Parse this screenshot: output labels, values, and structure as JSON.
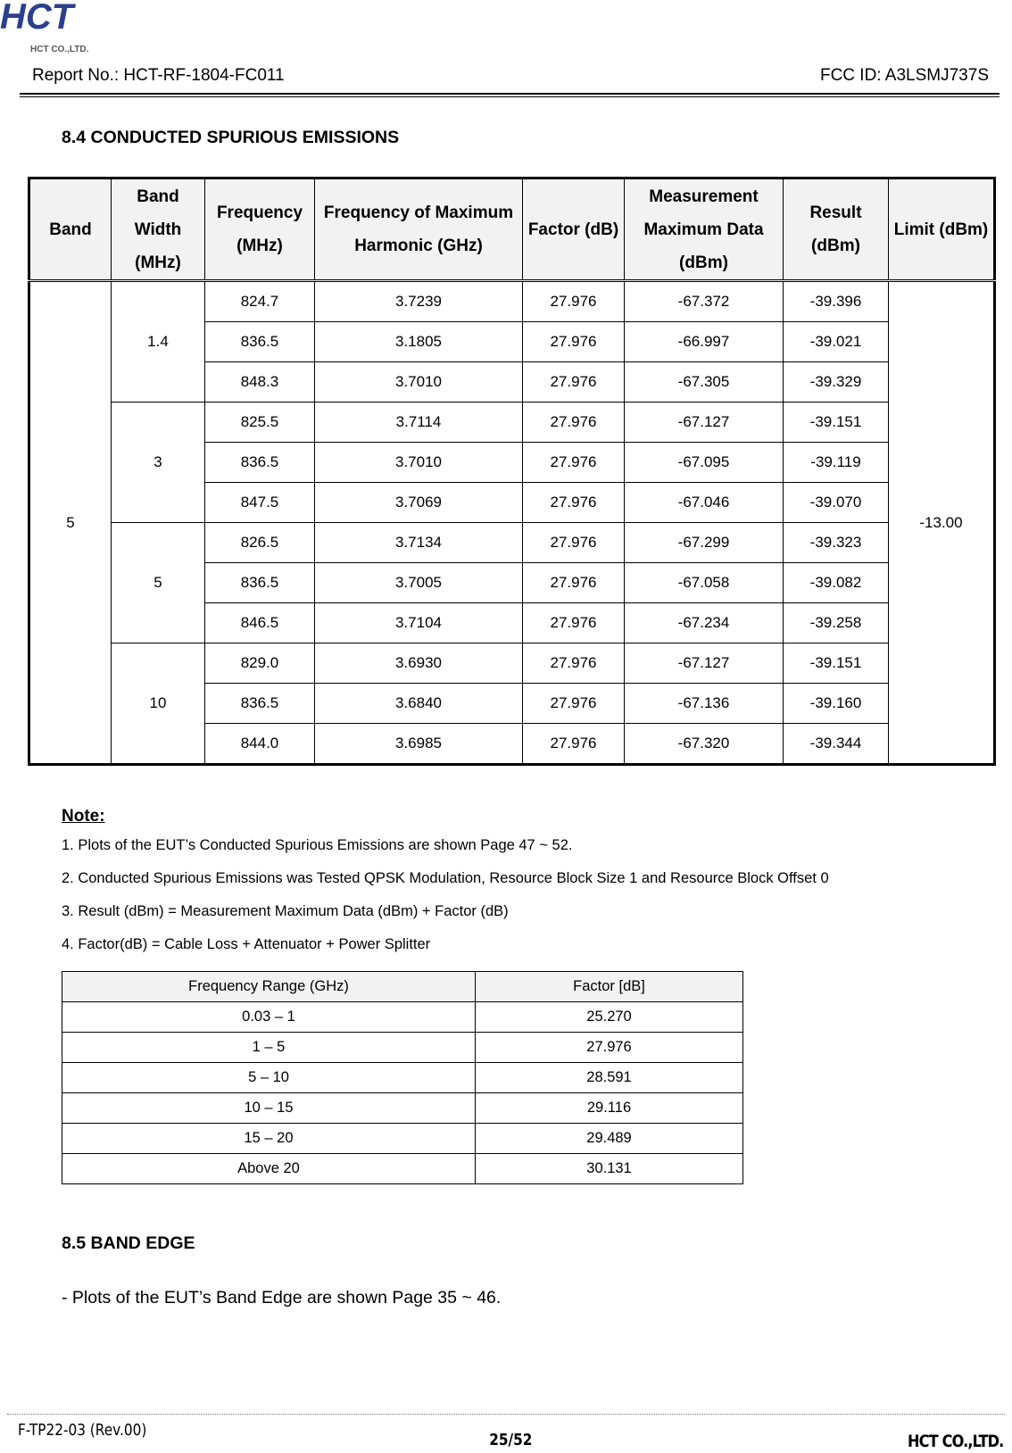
{
  "header": {
    "logo_text": "HCT",
    "logo_sub": "HCT CO.,LTD.",
    "report_no": "Report No.: HCT-RF-1804-FC011",
    "fcc_id": "FCC ID: A3LSMJ737S",
    "brand_color": "#2b3f8f"
  },
  "section_84": {
    "title": "8.4 CONDUCTED SPURIOUS EMISSIONS"
  },
  "main_table": {
    "headers": [
      "Band",
      "Band Width (MHz)",
      "Frequency (MHz)",
      "Frequency of Maximum Harmonic (GHz)",
      "Factor (dB)",
      "Measurement Maximum Data (dBm)",
      "Result (dBm)",
      "Limit (dBm)"
    ],
    "band": "5",
    "limit": "-13.00",
    "groups": [
      {
        "bw": "1.4",
        "rows": [
          [
            "824.7",
            "3.7239",
            "27.976",
            "-67.372",
            "-39.396"
          ],
          [
            "836.5",
            "3.1805",
            "27.976",
            "-66.997",
            "-39.021"
          ],
          [
            "848.3",
            "3.7010",
            "27.976",
            "-67.305",
            "-39.329"
          ]
        ]
      },
      {
        "bw": "3",
        "rows": [
          [
            "825.5",
            "3.7114",
            "27.976",
            "-67.127",
            "-39.151"
          ],
          [
            "836.5",
            "3.7010",
            "27.976",
            "-67.095",
            "-39.119"
          ],
          [
            "847.5",
            "3.7069",
            "27.976",
            "-67.046",
            "-39.070"
          ]
        ]
      },
      {
        "bw": "5",
        "rows": [
          [
            "826.5",
            "3.7134",
            "27.976",
            "-67.299",
            "-39.323"
          ],
          [
            "836.5",
            "3.7005",
            "27.976",
            "-67.058",
            "-39.082"
          ],
          [
            "846.5",
            "3.7104",
            "27.976",
            "-67.234",
            "-39.258"
          ]
        ]
      },
      {
        "bw": "10",
        "rows": [
          [
            "829.0",
            "3.6930",
            "27.976",
            "-67.127",
            "-39.151"
          ],
          [
            "836.5",
            "3.6840",
            "27.976",
            "-67.136",
            "-39.160"
          ],
          [
            "844.0",
            "3.6985",
            "27.976",
            "-67.320",
            "-39.344"
          ]
        ]
      }
    ]
  },
  "notes": {
    "title": "Note:",
    "lines": [
      "1. Plots of the EUT’s Conducted Spurious Emissions are shown Page 47 ~ 52.",
      "2. Conducted Spurious Emissions was Tested QPSK Modulation, Resource Block Size 1 and Resource Block Offset 0",
      "3. Result (dBm) = Measurement Maximum Data (dBm) + Factor (dB)",
      "4. Factor(dB) = Cable Loss + Attenuator + Power Splitter"
    ]
  },
  "factor_table": {
    "headers": [
      "Frequency Range (GHz)",
      "Factor [dB]"
    ],
    "rows": [
      [
        "0.03 – 1",
        "25.270"
      ],
      [
        "1 – 5",
        "27.976"
      ],
      [
        "5 – 10",
        "28.591"
      ],
      [
        "10 – 15",
        "29.116"
      ],
      [
        "15 – 20",
        "29.489"
      ],
      [
        "Above 20",
        "30.131"
      ]
    ]
  },
  "section_85": {
    "title": "8.5 BAND EDGE",
    "text": "- Plots of the EUT’s Band Edge are shown Page 35 ~ 46."
  },
  "footer": {
    "form": "F-TP22-03 (Rev.00)",
    "page": "25/52",
    "company": "HCT CO.,LTD."
  }
}
